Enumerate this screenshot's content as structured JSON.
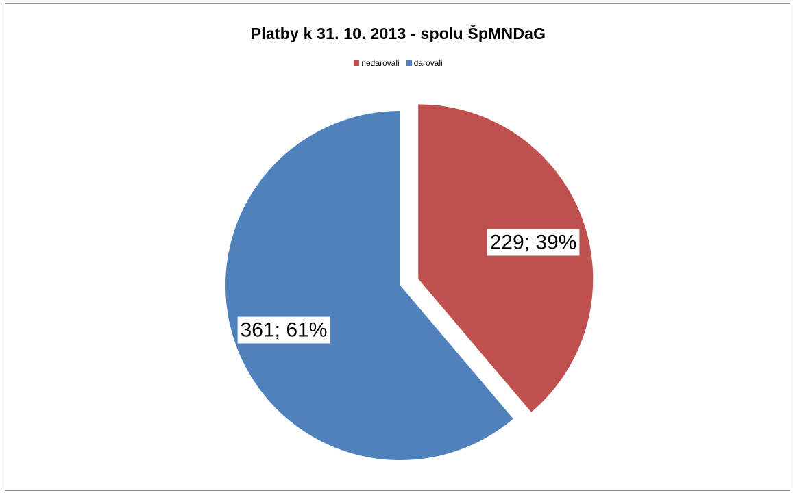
{
  "chart_data": {
    "type": "pie",
    "title": "Platby k 31. 10. 2013 - spolu ŠpMNDaG",
    "legend_position": "top",
    "slices": [
      {
        "name": "nedarovali",
        "value": 229,
        "label": "229; 39%",
        "color": "#C0504D",
        "exploded": true
      },
      {
        "name": "darovali",
        "value": 361,
        "label": "361; 61%",
        "color": "#4F81BD",
        "exploded": false
      }
    ]
  }
}
